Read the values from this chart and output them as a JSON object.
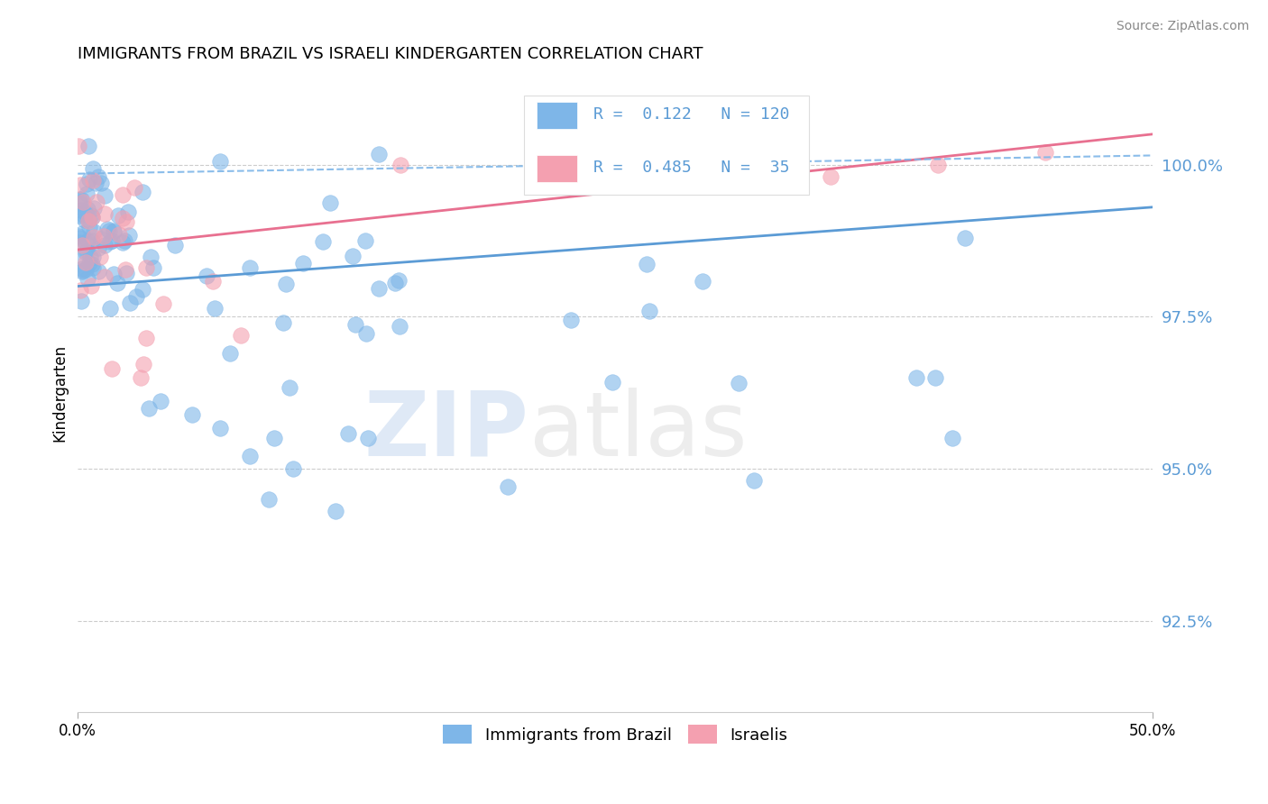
{
  "title": "IMMIGRANTS FROM BRAZIL VS ISRAELI KINDERGARTEN CORRELATION CHART",
  "source_text": "Source: ZipAtlas.com",
  "ylabel": "Kindergarten",
  "y_ticks": [
    92.5,
    95.0,
    97.5,
    100.0
  ],
  "y_tick_labels": [
    "92.5%",
    "95.0%",
    "97.5%",
    "100.0%"
  ],
  "xlim": [
    0.0,
    50.0
  ],
  "ylim": [
    91.0,
    101.5
  ],
  "blue_color": "#7EB6E8",
  "pink_color": "#F4A0B0",
  "blue_line_color": "#5B9BD5",
  "pink_line_color": "#E87090",
  "tick_color": "#5B9BD5",
  "grid_color": "#cccccc",
  "blue_R": 0.122,
  "blue_N": 120,
  "pink_R": 0.485,
  "pink_N": 35,
  "legend_label_blue": "Immigrants from Brazil",
  "legend_label_pink": "Israelis",
  "watermark_zip": "ZIP",
  "watermark_atlas": "atlas",
  "blue_line_x0": 0.0,
  "blue_line_y0": 98.0,
  "blue_line_x1": 50.0,
  "blue_line_y1": 99.3,
  "pink_line_x0": 0.0,
  "pink_line_y0": 98.6,
  "pink_line_x1": 50.0,
  "pink_line_y1": 100.5,
  "dashed_line_x0": 0.0,
  "dashed_line_y0": 99.85,
  "dashed_line_x1": 50.0,
  "dashed_line_y1": 100.15
}
